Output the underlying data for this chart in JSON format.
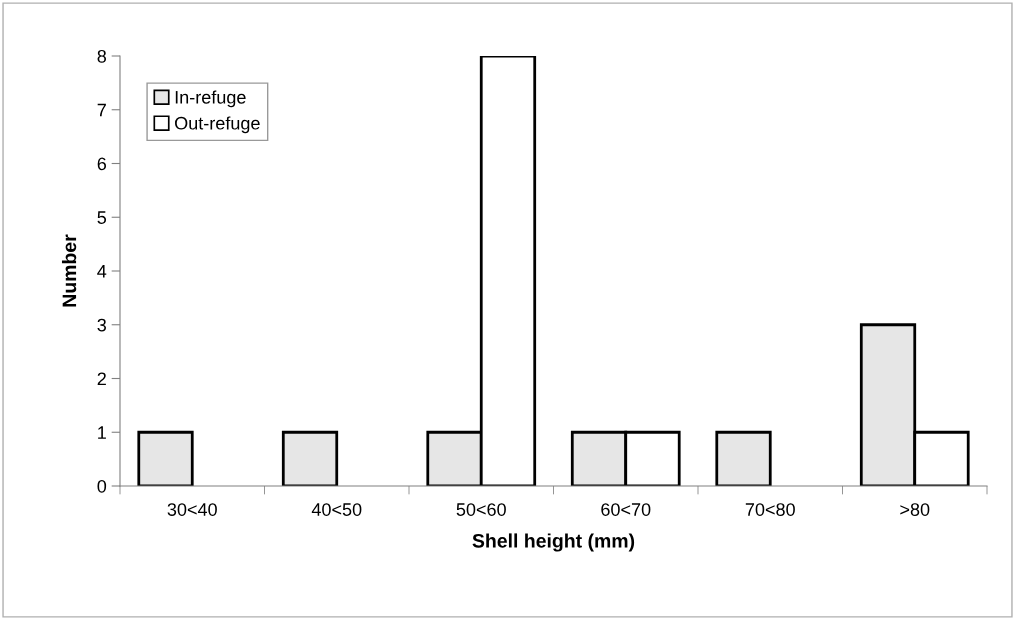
{
  "chart_data": {
    "type": "bar",
    "xlabel": "Shell height (mm)",
    "ylabel": "Number",
    "categories": [
      "30<40",
      "40<50",
      "50<60",
      "60<70",
      "70<80",
      ">80"
    ],
    "series": [
      {
        "name": "In-refuge",
        "color": "#e6e6e6",
        "values": [
          1,
          1,
          1,
          1,
          1,
          3
        ]
      },
      {
        "name": "Out-refuge",
        "color": "#ffffff",
        "values": [
          0,
          0,
          8,
          1,
          0,
          1
        ]
      }
    ],
    "ylim": [
      0,
      8
    ],
    "yticks": [
      0,
      1,
      2,
      3,
      4,
      5,
      6,
      7,
      8
    ],
    "grid": false,
    "legend": "top left"
  }
}
